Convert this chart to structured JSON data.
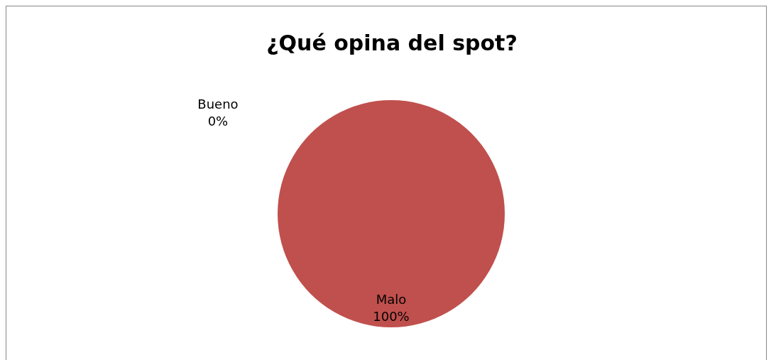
{
  "chart_data": {
    "type": "pie",
    "title": "¿Qué opina del spot?",
    "categories": [
      "Bueno",
      "Malo"
    ],
    "values": [
      0,
      100
    ],
    "colors": [
      "#4f81bd",
      "#c0504d"
    ],
    "value_labels": [
      "0%",
      "100%"
    ]
  }
}
